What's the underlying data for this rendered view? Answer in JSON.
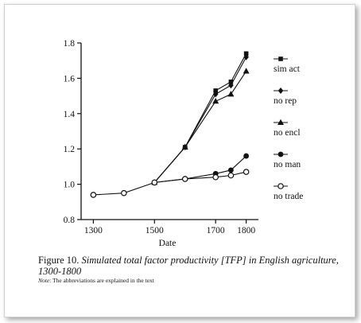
{
  "chart_data": {
    "type": "line",
    "xlabel": "Date",
    "ylabel": "",
    "xlim": [
      1260,
      1840
    ],
    "ylim": [
      0.8,
      1.8
    ],
    "xticks": [
      1300,
      1500,
      1700,
      1800
    ],
    "xtick_labels": [
      "1300",
      "1500",
      "1700",
      "1800"
    ],
    "yticks": [
      0.8,
      1.0,
      1.2,
      1.4,
      1.6,
      1.8
    ],
    "ytick_labels": [
      "0.8",
      "1.0",
      "1.2",
      "1.4",
      "1.6",
      "1.8"
    ],
    "legend_position": "right",
    "series": [
      {
        "name": "sim act",
        "marker": "square",
        "x": [
          1500,
          1600,
          1700,
          1750,
          1800
        ],
        "y": [
          1.01,
          1.21,
          1.53,
          1.58,
          1.74
        ]
      },
      {
        "name": "no rep",
        "marker": "diamond",
        "x": [
          1500,
          1600,
          1700,
          1750,
          1800
        ],
        "y": [
          1.01,
          1.21,
          1.51,
          1.56,
          1.72
        ]
      },
      {
        "name": "no encl",
        "marker": "triangle",
        "x": [
          1500,
          1600,
          1700,
          1750,
          1800
        ],
        "y": [
          1.01,
          1.21,
          1.47,
          1.51,
          1.64
        ]
      },
      {
        "name": "no man",
        "marker": "filled-circle",
        "x": [
          1500,
          1600,
          1700,
          1750,
          1800
        ],
        "y": [
          1.01,
          1.03,
          1.06,
          1.08,
          1.16
        ]
      },
      {
        "name": "no trade",
        "marker": "open-circle",
        "x": [
          1300,
          1400,
          1500,
          1600,
          1700,
          1750,
          1800
        ],
        "y": [
          0.94,
          0.95,
          1.01,
          1.03,
          1.04,
          1.05,
          1.07
        ]
      }
    ]
  },
  "caption": {
    "lead": "Figure 10.",
    "text": "Simulated total factor productivity [TFP] in English agriculture, 1300-1800"
  },
  "note": {
    "lead": "Note",
    "text": ": The abbreviations are explained in the text"
  }
}
